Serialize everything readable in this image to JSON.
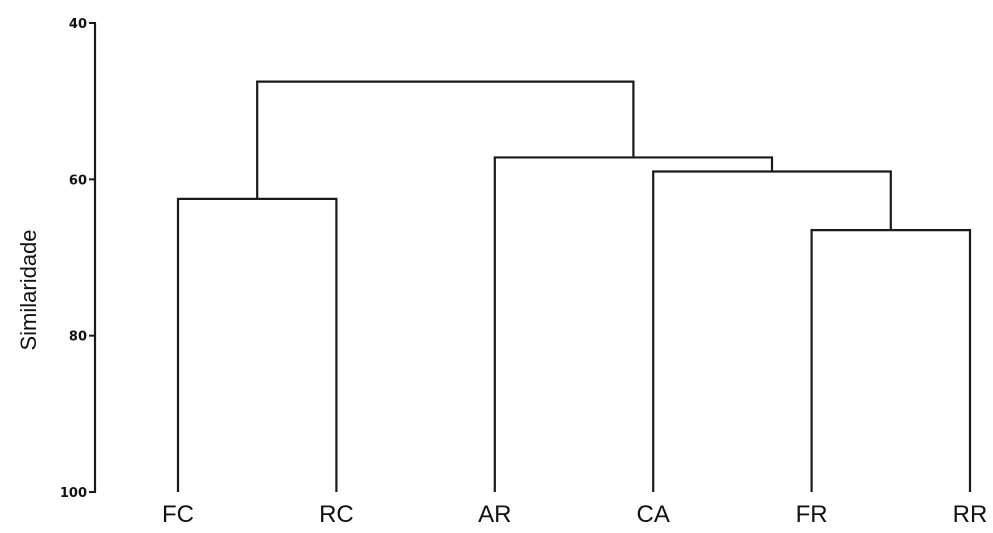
{
  "chart_data": {
    "type": "dendrogram",
    "ylabel": "Similaridade",
    "ylim": [
      40,
      100
    ],
    "y_inverted": true,
    "y_ticks": [
      {
        "value": 40,
        "label": "40"
      },
      {
        "value": 60,
        "label": "60"
      },
      {
        "value": 80,
        "label": "80"
      },
      {
        "value": 100,
        "label": "100"
      }
    ],
    "leaves": [
      "FC",
      "RC",
      "AR",
      "CA",
      "FR",
      "RR"
    ],
    "merges": [
      {
        "members": [
          "FC",
          "RC"
        ],
        "height": 62.5
      },
      {
        "members": [
          "FR",
          "RR"
        ],
        "height": 66.5
      },
      {
        "members": [
          "CA",
          "FR",
          "RR"
        ],
        "height": 59.0
      },
      {
        "members": [
          "AR",
          "CA",
          "FR",
          "RR"
        ],
        "height": 57.2
      },
      {
        "members": [
          "FC",
          "RC",
          "AR",
          "CA",
          "FR",
          "RR"
        ],
        "height": 47.5
      }
    ],
    "grid": false,
    "legend": "none"
  }
}
